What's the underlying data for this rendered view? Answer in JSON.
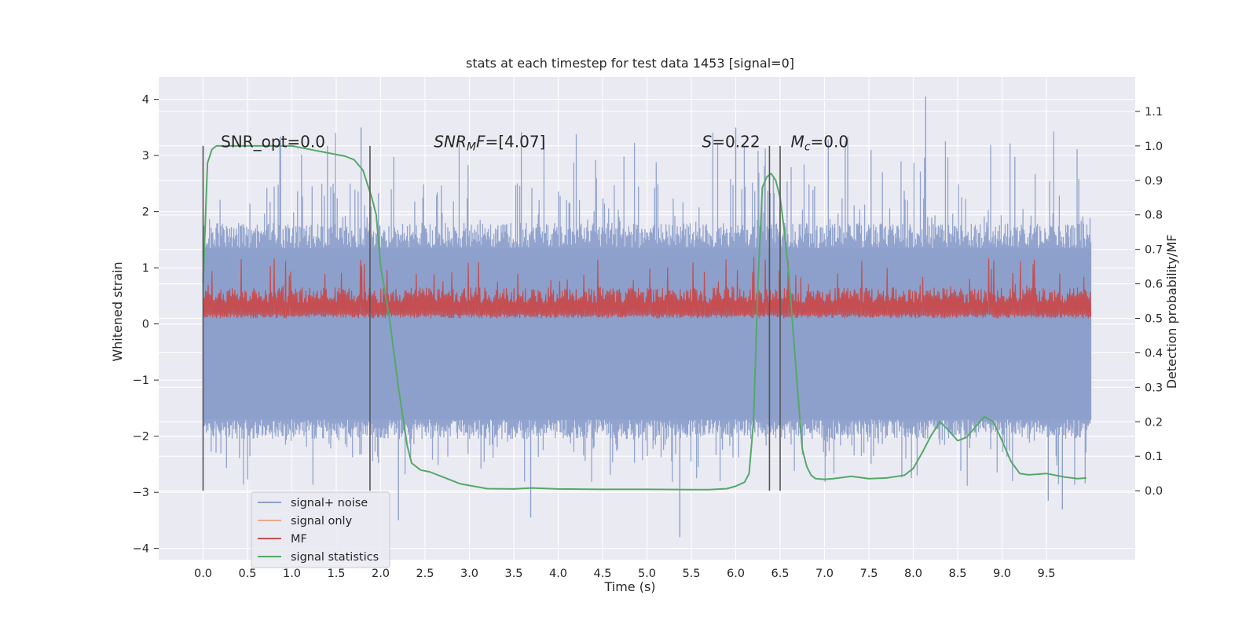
{
  "chart_data": {
    "type": "line",
    "title": "stats at each timestep for test data 1453 [signal=0]",
    "xlabel": "Time (s)",
    "ylabel_left": "Whitened strain",
    "ylabel_right": "Detection probability/MF",
    "xlim": [
      -0.5,
      10.5
    ],
    "ylim_left": [
      -4.2,
      4.4
    ],
    "ylim_right": [
      -0.2,
      1.2
    ],
    "x_ticks": [
      0.0,
      0.5,
      1.0,
      1.5,
      2.0,
      2.5,
      3.0,
      3.5,
      4.0,
      4.5,
      5.0,
      5.5,
      6.0,
      6.5,
      7.0,
      7.5,
      8.0,
      8.5,
      9.0,
      9.5
    ],
    "x_tick_labels": [
      "0.0",
      "0.5",
      "1.0",
      "1.5",
      "2.0",
      "2.5",
      "3.0",
      "3.5",
      "4.0",
      "4.5",
      "5.0",
      "5.5",
      "6.0",
      "6.5",
      "7.0",
      "7.5",
      "8.0",
      "8.5",
      "9.0",
      "9.5"
    ],
    "y_ticks_left": [
      4,
      3,
      2,
      1,
      0,
      -1,
      -2,
      -3,
      -4
    ],
    "y_tick_labels_left": [
      "4",
      "3",
      "2",
      "1",
      "0",
      "−1",
      "−2",
      "−3",
      "−4"
    ],
    "y_ticks_right": [
      1.1,
      1.0,
      0.9,
      0.8,
      0.7,
      0.6,
      0.5,
      0.4,
      0.3,
      0.2,
      0.1,
      0.0
    ],
    "y_tick_labels_right": [
      "1.1",
      "1.0",
      "0.9",
      "0.8",
      "0.7",
      "0.6",
      "0.5",
      "0.4",
      "0.3",
      "0.2",
      "0.1",
      "0.0"
    ],
    "grid": true,
    "legend_position": "lower-left",
    "colors": {
      "plot_bg": "#eaeaf2",
      "grid": "#ffffff",
      "noise": "#8da0cb",
      "signal_only": "#e8a98f",
      "mf": "#c44e52",
      "stats": "#55a868",
      "vline": "#555555"
    },
    "series": [
      {
        "name": "signal+ noise",
        "axis": "left",
        "render": "dense-noise",
        "x_range": [
          0.0,
          10.0
        ],
        "body_range": [
          -1.7,
          1.35
        ],
        "spike_max": 4.05,
        "spike_min": -3.8,
        "notable_spikes": [
          [
            8.14,
            4.05
          ],
          [
            5.37,
            -3.8
          ],
          [
            1.78,
            3.5
          ],
          [
            9.68,
            -3.3
          ],
          [
            9.52,
            -3.15
          ],
          [
            3.69,
            -3.45
          ],
          [
            2.2,
            -3.5
          ],
          [
            6.0,
            3.5
          ]
        ]
      },
      {
        "name": "signal only",
        "axis": "left",
        "x": [],
        "y": []
      },
      {
        "name": "MF",
        "axis": "right",
        "render": "dense-noise",
        "x_range": [
          0.0,
          10.0
        ],
        "body_range": [
          0.48,
          0.6
        ],
        "spike_max": 0.68,
        "spike_min": 0.48
      },
      {
        "name": "signal statistics",
        "axis": "right",
        "x": [
          0.0,
          0.05,
          0.1,
          0.15,
          0.2,
          0.3,
          0.5,
          0.8,
          1.0,
          1.2,
          1.4,
          1.6,
          1.7,
          1.8,
          1.9,
          1.95,
          2.0,
          2.1,
          2.2,
          2.3,
          2.35,
          2.45,
          2.55,
          2.7,
          2.9,
          3.2,
          3.5,
          3.7,
          4.0,
          4.5,
          5.0,
          5.5,
          5.7,
          5.9,
          6.0,
          6.1,
          6.15,
          6.2,
          6.25,
          6.3,
          6.35,
          6.4,
          6.45,
          6.5,
          6.55,
          6.6,
          6.65,
          6.7,
          6.75,
          6.8,
          6.85,
          6.9,
          7.0,
          7.1,
          7.3,
          7.5,
          7.7,
          7.9,
          8.0,
          8.1,
          8.2,
          8.3,
          8.4,
          8.5,
          8.6,
          8.7,
          8.8,
          8.9,
          9.0,
          9.1,
          9.2,
          9.3,
          9.5,
          9.7,
          9.85,
          9.95
        ],
        "y": [
          0.6,
          0.95,
          0.99,
          1.0,
          1.0,
          1.0,
          1.0,
          1.0,
          1.0,
          0.99,
          0.98,
          0.97,
          0.96,
          0.93,
          0.85,
          0.8,
          0.65,
          0.5,
          0.3,
          0.13,
          0.08,
          0.06,
          0.055,
          0.04,
          0.02,
          0.006,
          0.005,
          0.008,
          0.005,
          0.004,
          0.004,
          0.003,
          0.003,
          0.006,
          0.013,
          0.025,
          0.05,
          0.2,
          0.6,
          0.88,
          0.91,
          0.92,
          0.9,
          0.85,
          0.75,
          0.62,
          0.45,
          0.28,
          0.12,
          0.07,
          0.045,
          0.035,
          0.033,
          0.035,
          0.042,
          0.035,
          0.037,
          0.045,
          0.065,
          0.11,
          0.16,
          0.2,
          0.175,
          0.145,
          0.155,
          0.185,
          0.215,
          0.2,
          0.145,
          0.085,
          0.05,
          0.046,
          0.05,
          0.04,
          0.035,
          0.037
        ]
      }
    ],
    "vlines": [
      0.0,
      1.88,
      6.38,
      6.5
    ],
    "annotations": [
      {
        "text": "SNR_opt=0.0",
        "x": 0.2,
        "y": 3.15
      },
      {
        "text": "SNRMF=[4.07]",
        "x": 2.6,
        "y": 3.15
      },
      {
        "text": "S=0.22",
        "x": 5.62,
        "y": 3.15
      },
      {
        "text": "Mc=0.0",
        "x": 6.62,
        "y": 3.15
      }
    ]
  }
}
